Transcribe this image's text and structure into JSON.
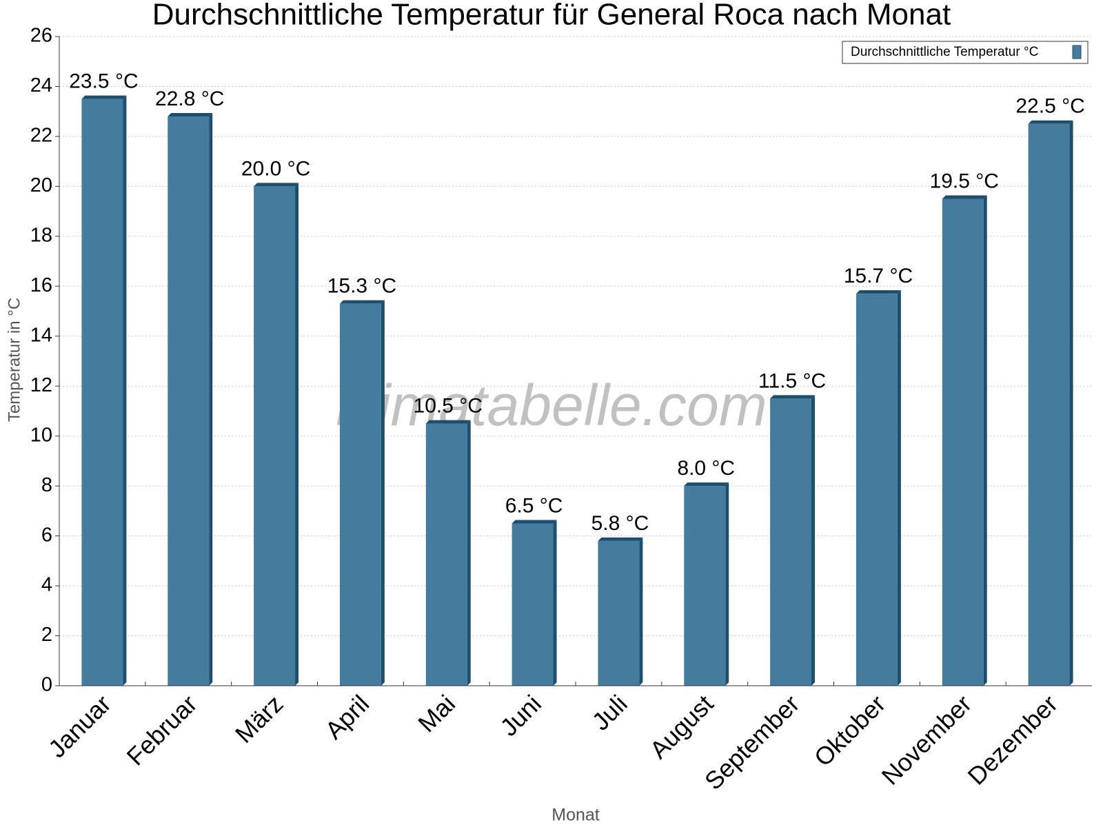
{
  "chart_data": {
    "type": "bar",
    "title": "Durchschnittliche Temperatur für General Roca nach Monat",
    "x_label": "Monat",
    "y_label": "Temperatur in °C",
    "watermark": "klimatabelle.com",
    "categories": [
      "Januar",
      "Februar",
      "März",
      "April",
      "Mai",
      "Juni",
      "Juli",
      "August",
      "September",
      "Oktober",
      "November",
      "Dezember"
    ],
    "series": [
      {
        "name": "Durchschnittliche Temperatur °C",
        "color": "#457b9d",
        "values": [
          23.5,
          22.8,
          20.0,
          15.3,
          10.5,
          6.5,
          5.8,
          8.0,
          11.5,
          15.7,
          19.5,
          22.5
        ],
        "value_labels": [
          "23.5 °C",
          "22.8 °C",
          "20.0 °C",
          "15.3 °C",
          "10.5 °C",
          "6.5 °C",
          "5.8 °C",
          "8.0 °C",
          "11.5 °C",
          "15.7 °C",
          "19.5 °C",
          "22.5 °C"
        ]
      }
    ],
    "ylim": [
      0,
      26
    ],
    "yticks": [
      0,
      2,
      4,
      6,
      8,
      10,
      12,
      14,
      16,
      18,
      20,
      22,
      24,
      26
    ],
    "grid": true,
    "legend": "top-right"
  }
}
